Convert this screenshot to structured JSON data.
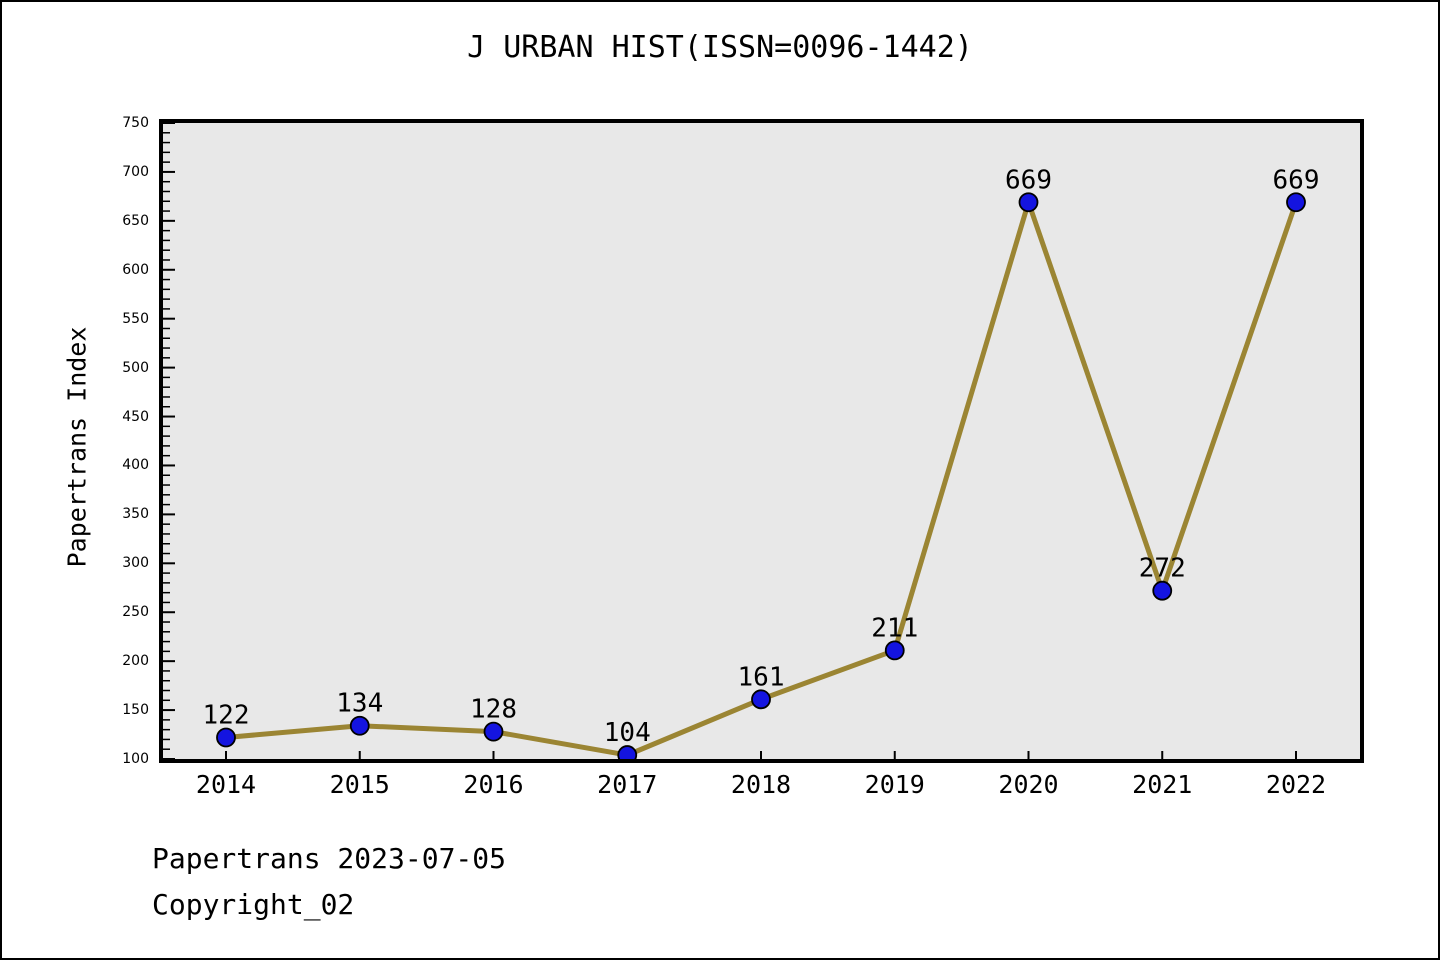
{
  "title": "J URBAN HIST(ISSN=0096-1442)",
  "footer": {
    "line1": "Papertrans 2023-07-05",
    "line2": "Copyright_02"
  },
  "chart_data": {
    "type": "line",
    "title": "J URBAN HIST(ISSN=0096-1442)",
    "xlabel": "",
    "ylabel": "Papertrans Index",
    "categories": [
      "2014",
      "2015",
      "2016",
      "2017",
      "2018",
      "2019",
      "2020",
      "2021",
      "2022"
    ],
    "series": [
      {
        "name": "Papertrans Index",
        "values": [
          122,
          134,
          128,
          104,
          161,
          211,
          669,
          272,
          669
        ]
      }
    ],
    "point_labels": [
      "122",
      "134",
      "128",
      "104",
      "161",
      "211",
      "669",
      "272",
      "669"
    ],
    "ylim": [
      100,
      750
    ],
    "yticks": [
      100,
      150,
      200,
      250,
      300,
      350,
      400,
      450,
      500,
      550,
      600,
      650,
      700,
      750
    ],
    "ytick_minor_step": 10,
    "grid": false,
    "legend": "none",
    "colors": {
      "line": "#9B8533",
      "marker_fill": "#1414E0",
      "marker_edge": "#000000",
      "plot_background": "#E8E8E8",
      "frame": "#000000",
      "text": "#000000"
    }
  }
}
